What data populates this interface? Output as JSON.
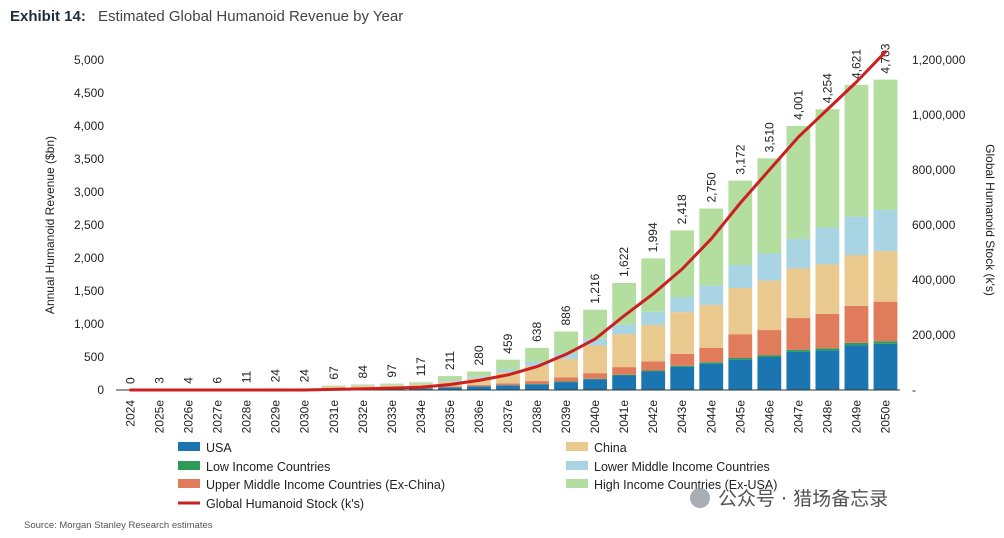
{
  "header": {
    "exhibit": "Exhibit 14:",
    "title": "Estimated Global Humanoid Revenue by Year"
  },
  "source": "Source: Morgan Stanley Research estimates",
  "watermark": "公众号 · 猎场备忘录",
  "chart_data": {
    "type": "bar",
    "stacked": true,
    "categories": [
      "2024",
      "2025e",
      "2026e",
      "2027e",
      "2028e",
      "2029e",
      "2030e",
      "2031e",
      "2032e",
      "2033e",
      "2034e",
      "2035e",
      "2036e",
      "2037e",
      "2038e",
      "2039e",
      "2040e",
      "2041e",
      "2042e",
      "2043e",
      "2044e",
      "2045e",
      "2046e",
      "2047e",
      "2048e",
      "2049e",
      "2050e"
    ],
    "totals": [
      0,
      3,
      4,
      6,
      11,
      24,
      24,
      67,
      84,
      97,
      117,
      211,
      280,
      459,
      638,
      886,
      1216,
      1622,
      1994,
      2418,
      2750,
      3172,
      3510,
      4001,
      4254,
      4621,
      4703
    ],
    "total_labels": [
      "0",
      "3",
      "4",
      "6",
      "11",
      "24",
      "24",
      "67",
      "84",
      "97",
      "117",
      "211",
      "280",
      "459",
      "638",
      "886",
      "1,216",
      "1,622",
      "1,994",
      "2,418",
      "2,750",
      "3,172",
      "3,510",
      "4,001",
      "4,254",
      "4,621",
      "4,703"
    ],
    "series": [
      {
        "name": "USA",
        "color": "#1a75b0",
        "values": [
          0,
          0,
          0,
          0,
          0,
          0,
          0,
          10,
          15,
          18,
          25,
          40,
          55,
          70,
          85,
          120,
          160,
          220,
          280,
          350,
          400,
          460,
          500,
          580,
          600,
          680,
          700
        ]
      },
      {
        "name": "Low Income Countries",
        "color": "#2e9a55",
        "values": [
          0,
          0,
          0,
          0,
          0,
          0,
          0,
          0,
          0,
          0,
          1,
          1,
          2,
          3,
          5,
          8,
          10,
          12,
          15,
          18,
          20,
          25,
          28,
          30,
          32,
          35,
          38
        ]
      },
      {
        "name": "Upper Middle Income Countries (Ex-China)",
        "color": "#e07b5c",
        "values": [
          0,
          0,
          0,
          0,
          0,
          0,
          0,
          3,
          5,
          6,
          8,
          12,
          18,
          28,
          45,
          65,
          85,
          115,
          140,
          180,
          220,
          360,
          380,
          480,
          520,
          560,
          600
        ]
      },
      {
        "name": "China",
        "color": "#e9c98e",
        "values": [
          0,
          3,
          4,
          6,
          11,
          24,
          24,
          40,
          45,
          48,
          55,
          80,
          110,
          170,
          230,
          280,
          420,
          500,
          550,
          630,
          650,
          700,
          750,
          750,
          750,
          770,
          770
        ]
      },
      {
        "name": "Lower Middle Income Countries",
        "color": "#a8d4e4",
        "values": [
          0,
          0,
          0,
          0,
          0,
          0,
          0,
          4,
          5,
          6,
          8,
          18,
          25,
          40,
          60,
          80,
          100,
          140,
          200,
          230,
          290,
          350,
          410,
          450,
          560,
          580,
          620
        ]
      },
      {
        "name": "High Income Countries (Ex-USA)",
        "color": "#b4dea0",
        "values": [
          0,
          0,
          0,
          0,
          0,
          0,
          0,
          10,
          14,
          19,
          20,
          60,
          70,
          148,
          213,
          333,
          441,
          635,
          809,
          1010,
          1170,
          1277,
          1442,
          1711,
          1792,
          1996,
          1975
        ]
      }
    ],
    "line": {
      "name": "Global Humanoid Stock (k's)",
      "color": "#cc1f1f",
      "axis": "right",
      "values": [
        0,
        0,
        0,
        0,
        0,
        0,
        0,
        2,
        4,
        7,
        10,
        20,
        35,
        55,
        85,
        130,
        185,
        270,
        350,
        440,
        550,
        680,
        800,
        920,
        1020,
        1120,
        1230
      ]
    },
    "ylabel": "Annual Humanoid Revenue ($bn)",
    "y2label": "Global Humanoid Stock (k's)",
    "ylim": [
      0,
      5000
    ],
    "yticks": [
      0,
      500,
      1000,
      1500,
      2000,
      2500,
      3000,
      3500,
      4000,
      4500,
      5000
    ],
    "ytick_labels": [
      "0",
      "500",
      "1,000",
      "1,500",
      "2,000",
      "2,500",
      "3,000",
      "3,500",
      "4,000",
      "4,500",
      "5,000"
    ],
    "y2lim": [
      0,
      1200000
    ],
    "y2ticks": [
      0,
      200000,
      400000,
      600000,
      800000,
      1000000,
      1200000
    ],
    "y2tick_labels": [
      "-",
      "200,000",
      "400,000",
      "600,000",
      "800,000",
      "1,000,000",
      "1,200,000"
    ],
    "y2_line_scale": 1000,
    "legend_position": "bottom",
    "legend_order": [
      "USA",
      "China",
      "Low Income Countries",
      "Lower Middle Income Countries",
      "Upper Middle Income Countries (Ex-China)",
      "High Income Countries (Ex-USA)",
      "Global Humanoid Stock (k's)"
    ],
    "grid": false
  }
}
